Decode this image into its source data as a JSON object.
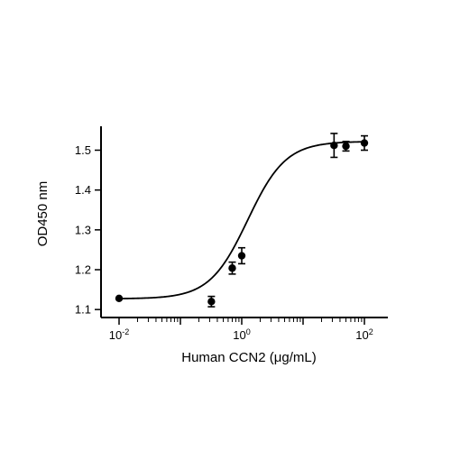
{
  "chart_data": {
    "type": "scatter",
    "xlabel": "Human CCN2 (μg/mL)",
    "ylabel": "OD450 nm",
    "x_scale": "log10",
    "xlim": [
      0.01,
      100
    ],
    "ylim": [
      1.08,
      1.56
    ],
    "x_ticks": [
      {
        "value": 0.01,
        "base": "10",
        "exp": "-2"
      },
      {
        "value": 1,
        "base": "10",
        "exp": "0"
      },
      {
        "value": 100,
        "base": "10",
        "exp": "2"
      }
    ],
    "y_ticks": [
      {
        "value": 1.1,
        "label": "1.1"
      },
      {
        "value": 1.2,
        "label": "1.2"
      },
      {
        "value": 1.3,
        "label": "1.3"
      },
      {
        "value": 1.4,
        "label": "1.4"
      },
      {
        "value": 1.5,
        "label": "1.5"
      }
    ],
    "points": [
      {
        "x": 0.01,
        "y": 1.128,
        "err": 0.0
      },
      {
        "x": 0.32,
        "y": 1.12,
        "err": 0.013
      },
      {
        "x": 0.7,
        "y": 1.204,
        "err": 0.015
      },
      {
        "x": 1.0,
        "y": 1.235,
        "err": 0.02
      },
      {
        "x": 32,
        "y": 1.512,
        "err": 0.03
      },
      {
        "x": 50,
        "y": 1.51,
        "err": 0.012
      },
      {
        "x": 100,
        "y": 1.518,
        "err": 0.018
      }
    ],
    "fit": {
      "bottom": 1.127,
      "top": 1.522,
      "ec50": 1.25,
      "hill": 1.4
    },
    "grid": false,
    "legend": "none",
    "color": "#000000"
  }
}
